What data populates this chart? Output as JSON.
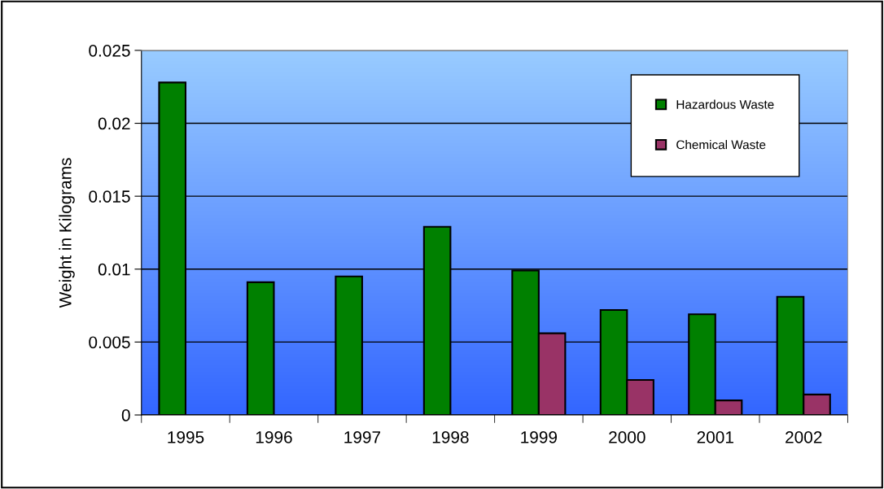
{
  "chart_data": {
    "type": "bar",
    "ylabel": "Weight in Kilograms",
    "categories": [
      "1995",
      "1996",
      "1997",
      "1998",
      "1999",
      "2000",
      "2001",
      "2002"
    ],
    "series": [
      {
        "name": "Hazardous Waste",
        "color": "#008000",
        "values": [
          0.0228,
          0.0091,
          0.0095,
          0.0129,
          0.0099,
          0.0072,
          0.0069,
          0.0081
        ]
      },
      {
        "name": "Chemical Waste",
        "color": "#993366",
        "values": [
          null,
          null,
          null,
          null,
          0.0056,
          0.0024,
          0.001,
          0.0014
        ]
      }
    ],
    "ylim": [
      0,
      0.025
    ],
    "yticks": [
      0,
      0.005,
      0.01,
      0.015,
      0.02,
      0.025
    ],
    "grid": "y",
    "legend": "top right"
  }
}
